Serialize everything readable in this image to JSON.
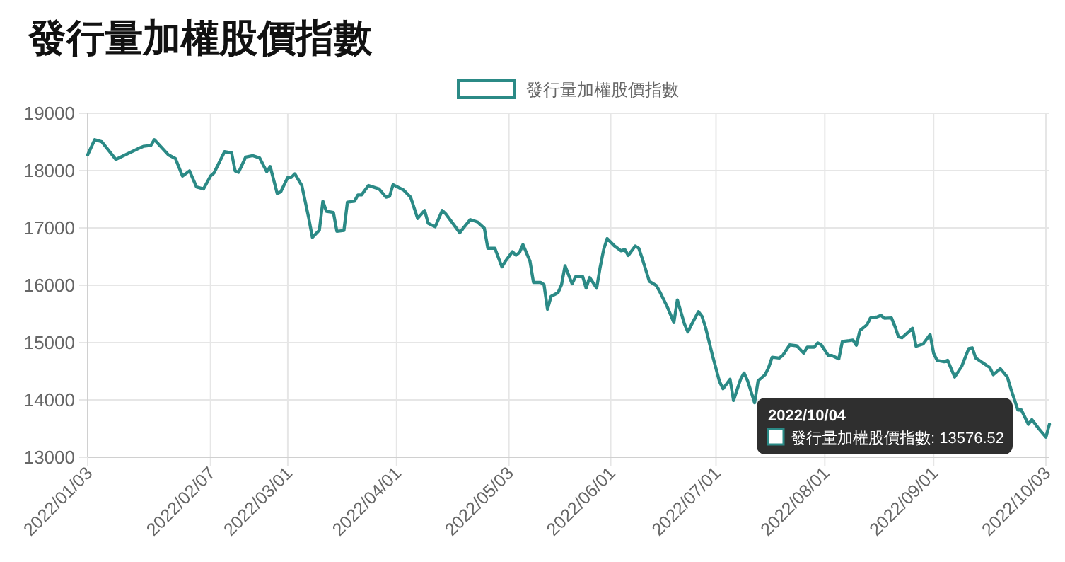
{
  "chart_data": {
    "type": "line",
    "title": "發行量加權股價指數",
    "legend": "top",
    "grid": true,
    "xlim": [
      "2022-01-03",
      "2022-10-04"
    ],
    "xticks": [
      {
        "value": "2022-01-03",
        "label": "2022/01/03"
      },
      {
        "value": "2022-02-07",
        "label": "2022/02/07"
      },
      {
        "value": "2022-03-01",
        "label": "2022/03/01"
      },
      {
        "value": "2022-04-01",
        "label": "2022/04/01"
      },
      {
        "value": "2022-05-03",
        "label": "2022/05/03"
      },
      {
        "value": "2022-06-01",
        "label": "2022/06/01"
      },
      {
        "value": "2022-07-01",
        "label": "2022/07/01"
      },
      {
        "value": "2022-08-01",
        "label": "2022/08/01"
      },
      {
        "value": "2022-09-01",
        "label": "2022/09/01"
      },
      {
        "value": "2022-10-03",
        "label": "2022/10/03"
      }
    ],
    "ylim": [
      13000,
      19000
    ],
    "yticks": [
      13000,
      14000,
      15000,
      16000,
      17000,
      18000,
      19000
    ],
    "x": [
      "2022-01-03",
      "2022-01-05",
      "2022-01-07",
      "2022-01-11",
      "2022-01-18",
      "2022-01-19",
      "2022-01-21",
      "2022-01-22",
      "2022-01-26",
      "2022-01-28",
      "2022-01-30",
      "2022-02-01",
      "2022-02-03",
      "2022-02-05",
      "2022-02-07",
      "2022-02-08",
      "2022-02-11",
      "2022-02-13",
      "2022-02-14",
      "2022-02-15",
      "2022-02-17",
      "2022-02-19",
      "2022-02-21",
      "2022-02-23",
      "2022-02-24",
      "2022-02-26",
      "2022-02-27",
      "2022-03-01",
      "2022-03-02",
      "2022-03-03",
      "2022-03-05",
      "2022-03-07",
      "2022-03-08",
      "2022-03-10",
      "2022-03-11",
      "2022-03-12",
      "2022-03-14",
      "2022-03-15",
      "2022-03-17",
      "2022-03-18",
      "2022-03-20",
      "2022-03-21",
      "2022-03-22",
      "2022-03-24",
      "2022-03-27",
      "2022-03-29",
      "2022-03-30",
      "2022-03-31",
      "2022-04-03",
      "2022-04-05",
      "2022-04-07",
      "2022-04-09",
      "2022-04-10",
      "2022-04-12",
      "2022-04-14",
      "2022-04-15",
      "2022-04-19",
      "2022-04-20",
      "2022-04-22",
      "2022-04-24",
      "2022-04-26",
      "2022-04-27",
      "2022-04-29",
      "2022-05-01",
      "2022-05-02",
      "2022-05-04",
      "2022-05-05",
      "2022-05-06",
      "2022-05-07",
      "2022-05-09",
      "2022-05-10",
      "2022-05-12",
      "2022-05-13",
      "2022-05-14",
      "2022-05-15",
      "2022-05-17",
      "2022-05-18",
      "2022-05-19",
      "2022-05-21",
      "2022-05-22",
      "2022-05-24",
      "2022-05-25",
      "2022-05-26",
      "2022-05-28",
      "2022-05-29",
      "2022-05-30",
      "2022-05-31",
      "2022-06-02",
      "2022-06-04",
      "2022-06-05",
      "2022-06-06",
      "2022-06-08",
      "2022-06-09",
      "2022-06-10",
      "2022-06-12",
      "2022-06-14",
      "2022-06-15",
      "2022-06-17",
      "2022-06-19",
      "2022-06-20",
      "2022-06-22",
      "2022-06-23",
      "2022-06-24",
      "2022-06-26",
      "2022-06-27",
      "2022-06-28",
      "2022-06-30",
      "2022-07-02",
      "2022-07-03",
      "2022-07-05",
      "2022-07-06",
      "2022-07-08",
      "2022-07-09",
      "2022-07-10",
      "2022-07-12",
      "2022-07-13",
      "2022-07-15",
      "2022-07-16",
      "2022-07-17",
      "2022-07-19",
      "2022-07-20",
      "2022-07-22",
      "2022-07-24",
      "2022-07-26",
      "2022-07-27",
      "2022-07-29",
      "2022-07-30",
      "2022-07-31",
      "2022-08-02",
      "2022-08-03",
      "2022-08-05",
      "2022-08-06",
      "2022-08-08",
      "2022-08-09",
      "2022-08-10",
      "2022-08-11",
      "2022-08-13",
      "2022-08-14",
      "2022-08-16",
      "2022-08-17",
      "2022-08-18",
      "2022-08-20",
      "2022-08-21",
      "2022-08-22",
      "2022-08-23",
      "2022-08-26",
      "2022-08-27",
      "2022-08-29",
      "2022-08-31",
      "2022-09-01",
      "2022-09-02",
      "2022-09-04",
      "2022-09-05",
      "2022-09-07",
      "2022-09-09",
      "2022-09-11",
      "2022-09-12",
      "2022-09-13",
      "2022-09-14",
      "2022-09-17",
      "2022-09-18",
      "2022-09-20",
      "2022-09-22",
      "2022-09-23",
      "2022-09-25",
      "2022-09-26",
      "2022-09-28",
      "2022-09-29",
      "2022-10-01",
      "2022-10-03",
      "2022-10-04"
    ],
    "series": [
      {
        "name": "發行量加權股價指數",
        "color": "#2b8a86",
        "values": [
          18275,
          18540,
          18505,
          18195,
          18400,
          18425,
          18440,
          18540,
          18275,
          18210,
          17905,
          17995,
          17715,
          17680,
          17905,
          17960,
          18330,
          18310,
          17995,
          17970,
          18235,
          18260,
          18220,
          17980,
          18070,
          17600,
          17630,
          17880,
          17880,
          17945,
          17740,
          17165,
          16835,
          16960,
          17465,
          17290,
          17270,
          16940,
          16955,
          17450,
          17465,
          17575,
          17575,
          17740,
          17680,
          17535,
          17550,
          17755,
          17660,
          17535,
          17165,
          17305,
          17080,
          17020,
          17305,
          17245,
          16915,
          16995,
          17145,
          17105,
          16995,
          16645,
          16645,
          16320,
          16420,
          16585,
          16525,
          16570,
          16710,
          16420,
          16050,
          16050,
          16010,
          15580,
          15805,
          15870,
          16010,
          16340,
          16025,
          16150,
          16155,
          15950,
          16135,
          15950,
          16315,
          16625,
          16815,
          16690,
          16600,
          16625,
          16520,
          16685,
          16645,
          16465,
          16070,
          15995,
          15885,
          15640,
          15350,
          15745,
          15325,
          15185,
          15310,
          15540,
          15460,
          15270,
          14775,
          14320,
          14195,
          14360,
          13990,
          14360,
          14470,
          14335,
          13950,
          14335,
          14440,
          14565,
          14745,
          14730,
          14775,
          14960,
          14945,
          14815,
          14920,
          14920,
          14995,
          14960,
          14775,
          14775,
          14715,
          15020,
          15035,
          15045,
          14955,
          15210,
          15310,
          15430,
          15450,
          15475,
          15425,
          15430,
          15280,
          15100,
          15085,
          15250,
          14935,
          14975,
          15140,
          14815,
          14690,
          14665,
          14690,
          14400,
          14585,
          14895,
          14910,
          14730,
          14690,
          14565,
          14440,
          14545,
          14400,
          14195,
          13825,
          13825,
          13575,
          13655,
          13495,
          13350,
          13576.52
        ]
      }
    ],
    "annotations": [
      "2022/10/04",
      "發行量加權股價指數: 13576.52"
    ]
  }
}
